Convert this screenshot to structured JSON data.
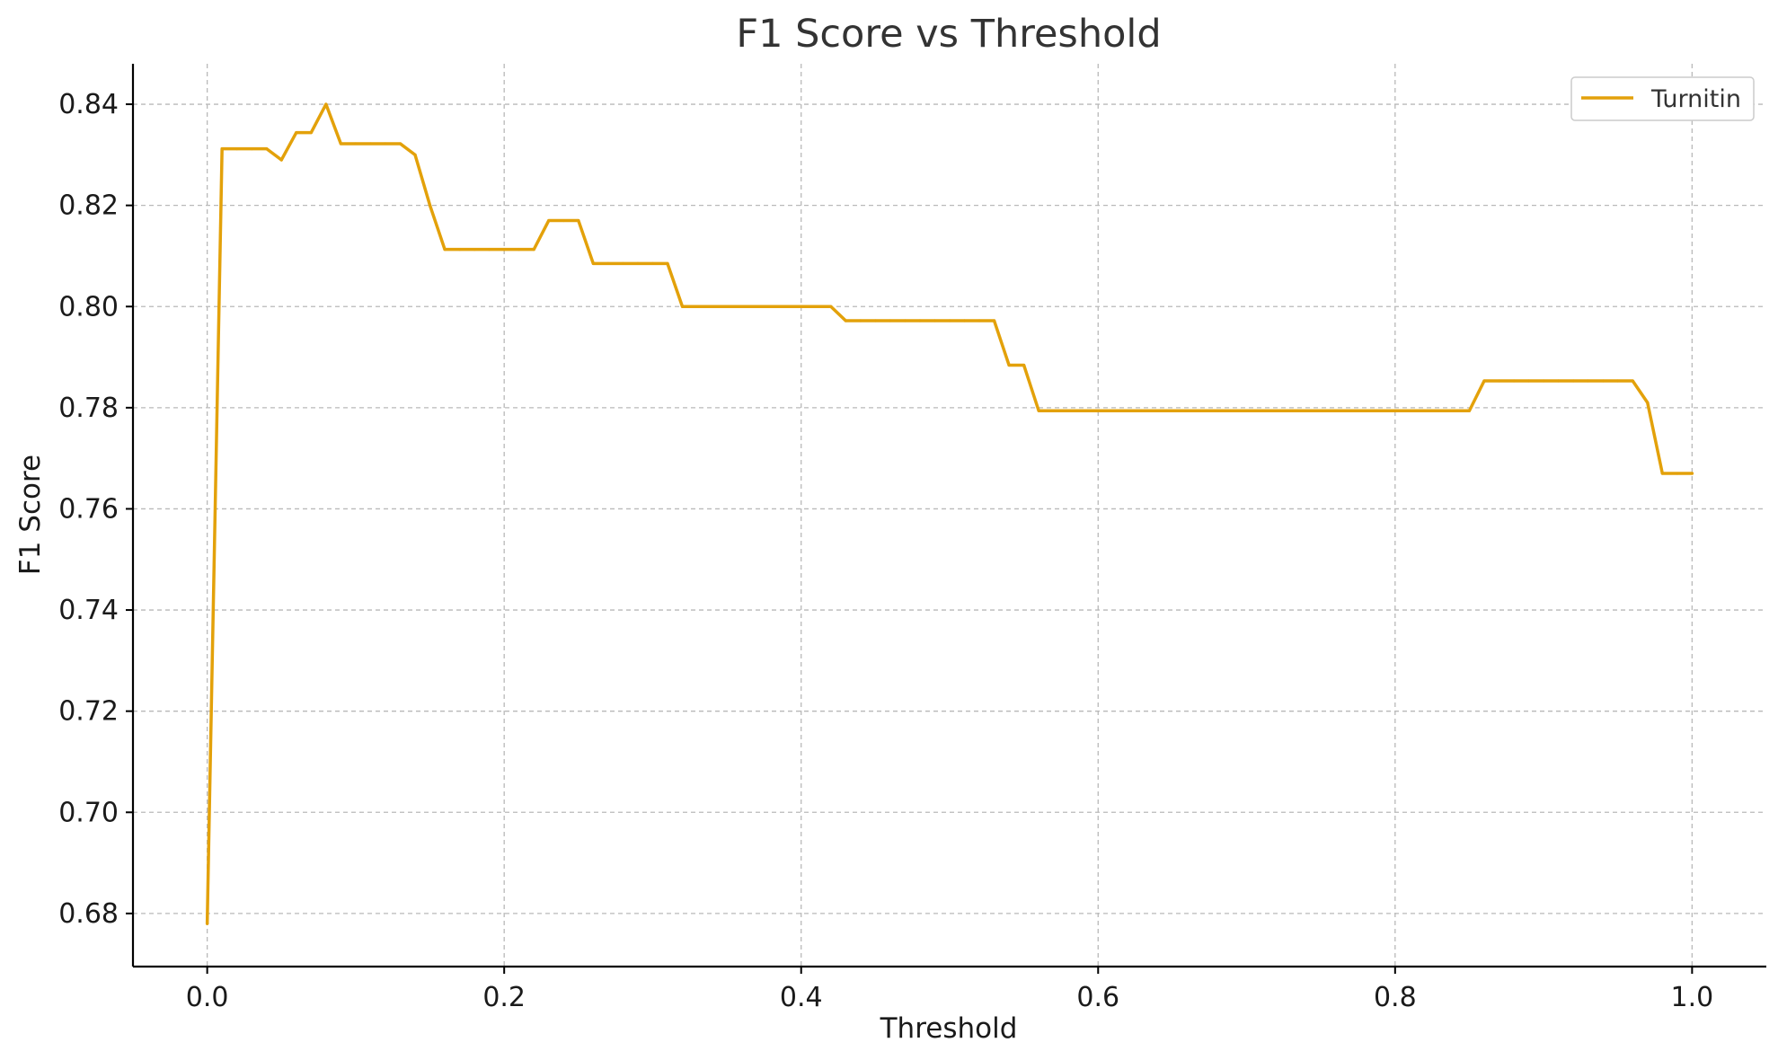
{
  "chart_data": {
    "type": "line",
    "title": "F1 Score vs Threshold",
    "xlabel": "Threshold",
    "ylabel": "F1 Score",
    "xlim": [
      -0.05,
      1.05
    ],
    "ylim": [
      0.6695,
      0.848
    ],
    "x_ticks": [
      0.0,
      0.2,
      0.4,
      0.6,
      0.8,
      1.0
    ],
    "x_tick_labels": [
      "0.0",
      "0.2",
      "0.4",
      "0.6",
      "0.8",
      "1.0"
    ],
    "y_ticks": [
      0.68,
      0.7,
      0.72,
      0.74,
      0.76,
      0.78,
      0.8,
      0.82,
      0.84
    ],
    "y_tick_labels": [
      "0.68",
      "0.70",
      "0.72",
      "0.74",
      "0.76",
      "0.78",
      "0.80",
      "0.82",
      "0.84"
    ],
    "grid": true,
    "legend_position": "top-right",
    "series": [
      {
        "name": "Turnitin",
        "color": "#E3A10A",
        "x": [
          0.0,
          0.01,
          0.02,
          0.03,
          0.04,
          0.05,
          0.06,
          0.07,
          0.08,
          0.09,
          0.1,
          0.11,
          0.12,
          0.13,
          0.14,
          0.15,
          0.16,
          0.17,
          0.18,
          0.19,
          0.2,
          0.21,
          0.22,
          0.23,
          0.24,
          0.25,
          0.26,
          0.27,
          0.28,
          0.29,
          0.3,
          0.31,
          0.32,
          0.33,
          0.34,
          0.35,
          0.36,
          0.37,
          0.38,
          0.39,
          0.4,
          0.41,
          0.42,
          0.43,
          0.44,
          0.45,
          0.46,
          0.47,
          0.48,
          0.49,
          0.5,
          0.51,
          0.52,
          0.53,
          0.54,
          0.55,
          0.56,
          0.57,
          0.58,
          0.59,
          0.6,
          0.61,
          0.62,
          0.63,
          0.64,
          0.65,
          0.66,
          0.67,
          0.68,
          0.69,
          0.7,
          0.71,
          0.72,
          0.73,
          0.74,
          0.75,
          0.76,
          0.77,
          0.78,
          0.79,
          0.8,
          0.81,
          0.82,
          0.83,
          0.84,
          0.85,
          0.86,
          0.87,
          0.88,
          0.89,
          0.9,
          0.91,
          0.92,
          0.93,
          0.94,
          0.95,
          0.96,
          0.97,
          0.98,
          0.99,
          1.0
        ],
        "y": [
          0.678,
          0.8312,
          0.8312,
          0.8312,
          0.8312,
          0.829,
          0.8344,
          0.8344,
          0.84,
          0.8322,
          0.8322,
          0.8322,
          0.8322,
          0.8322,
          0.83,
          0.82,
          0.8113,
          0.8113,
          0.8113,
          0.8113,
          0.8113,
          0.8113,
          0.8113,
          0.817,
          0.817,
          0.817,
          0.8085,
          0.8085,
          0.8085,
          0.8085,
          0.8085,
          0.8085,
          0.8,
          0.8,
          0.8,
          0.8,
          0.8,
          0.8,
          0.8,
          0.8,
          0.8,
          0.8,
          0.8,
          0.7972,
          0.7972,
          0.7972,
          0.7972,
          0.7972,
          0.7972,
          0.7972,
          0.7972,
          0.7972,
          0.7972,
          0.7972,
          0.7884,
          0.7884,
          0.7794,
          0.7794,
          0.7794,
          0.7794,
          0.7794,
          0.7794,
          0.7794,
          0.7794,
          0.7794,
          0.7794,
          0.7794,
          0.7794,
          0.7794,
          0.7794,
          0.7794,
          0.7794,
          0.7794,
          0.7794,
          0.7794,
          0.7794,
          0.7794,
          0.7794,
          0.7794,
          0.7794,
          0.7794,
          0.7794,
          0.7794,
          0.7794,
          0.7794,
          0.7794,
          0.7853,
          0.7853,
          0.7853,
          0.7853,
          0.7853,
          0.7853,
          0.7853,
          0.7853,
          0.7853,
          0.7853,
          0.7853,
          0.781,
          0.767,
          0.767,
          0.767
        ]
      }
    ]
  }
}
